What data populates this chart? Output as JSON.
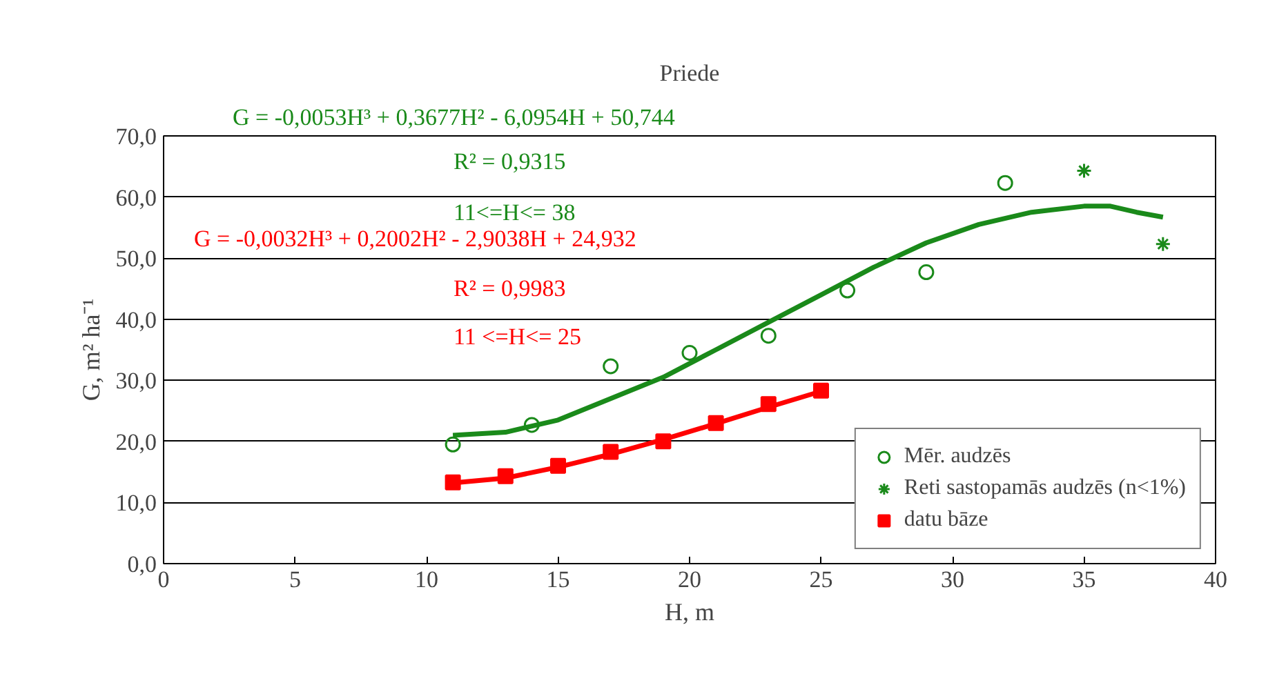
{
  "chart_data": {
    "type": "scatter",
    "title": "Priede",
    "xlabel": "H, m",
    "ylabel": "G, m² ha⁻¹",
    "xlim": [
      0,
      40
    ],
    "xticks": [
      0,
      5,
      10,
      15,
      20,
      25,
      30,
      35,
      40
    ],
    "ylim": [
      0,
      70
    ],
    "yticks": [
      {
        "value": 0,
        "label": "0,0"
      },
      {
        "value": 10,
        "label": "10,0"
      },
      {
        "value": 20,
        "label": "20,0"
      },
      {
        "value": 30,
        "label": "30,0"
      },
      {
        "value": 40,
        "label": "40,0"
      },
      {
        "value": 50,
        "label": "50,0"
      },
      {
        "value": 60,
        "label": "60,0"
      },
      {
        "value": 70,
        "label": "70,0"
      }
    ],
    "grid": "y",
    "legend": "bottom right",
    "annotations": [
      "G = -0,0053H³ + 0,3677H² - 6,0954H + 50,744",
      "R² = 0,9315",
      "11<=H<= 38",
      "G = -0,0032H³ + 0,2002H² - 2,9038H + 24,932",
      "R² = 0,9983",
      "11 <=H<= 25"
    ],
    "series": [
      {
        "type": "line",
        "color": "#1a8a1a",
        "marker": "none",
        "x": [
          11,
          13,
          15,
          17,
          19,
          21,
          23,
          25,
          27,
          29,
          31,
          33,
          35,
          36,
          37,
          38
        ],
        "values": [
          21,
          21.5,
          23.5,
          27,
          30.5,
          35,
          39.5,
          44,
          48.5,
          52.5,
          55.5,
          57.5,
          58.5,
          58.5,
          57.5,
          56.7
        ]
      },
      {
        "type": "line",
        "color": "#ff0000",
        "marker": "none",
        "x": [
          11,
          13,
          15,
          17,
          19,
          21,
          23,
          25
        ],
        "values": [
          13.2,
          14,
          15.8,
          17.9,
          20.3,
          22.9,
          25.6,
          28.2
        ]
      },
      {
        "name": "Mēr. audzēs",
        "color": "#1a8a1a",
        "marker": "circle",
        "x": [
          11,
          14,
          17,
          20,
          23,
          26,
          29,
          32
        ],
        "values": [
          19.5,
          22.7,
          32.3,
          34.5,
          37.3,
          44.7,
          47.7,
          62.3
        ]
      },
      {
        "name": "Reti sastopamās audzēs (n<1%)",
        "color": "#1a8a1a",
        "marker": "cross",
        "x": [
          35,
          38
        ],
        "values": [
          64.3,
          52.3
        ]
      },
      {
        "name": "datu bāze",
        "color": "#ff0000",
        "marker": "square",
        "x": [
          11,
          13,
          15,
          17,
          19,
          21,
          23,
          25
        ],
        "values": [
          13.3,
          14.3,
          16,
          18.3,
          20,
          23,
          26.1,
          28.3
        ]
      }
    ]
  }
}
